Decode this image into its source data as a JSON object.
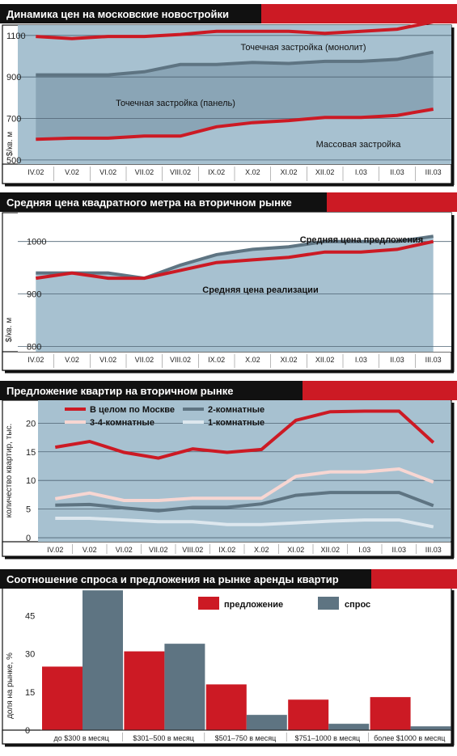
{
  "colors": {
    "header_bg": "#111111",
    "header_accent": "#cc1a24",
    "plot_bg": "#a7c1d0",
    "blue_band": "#8aa5b6",
    "grid": "#4e6373",
    "red": "#cc1a24",
    "slate": "#5e7482",
    "pink": "#f7d6d2",
    "light": "#dde7ee"
  },
  "chart_data": [
    {
      "type": "area",
      "title": "Динамика цен на московские новостройки",
      "xlabel": "",
      "ylabel": "$/кв. м",
      "categories": [
        "IV.02",
        "V.02",
        "VI.02",
        "VII.02",
        "VIII.02",
        "IX.02",
        "X.02",
        "XI.02",
        "XII.02",
        "I.03",
        "II.03",
        "III.03"
      ],
      "yticks": [
        500,
        700,
        900,
        1100
      ],
      "ylim": [
        480,
        1150
      ],
      "series": [
        {
          "name": "Точечная застройка (монолит)",
          "values": [
            1095,
            1085,
            1095,
            1095,
            1105,
            1120,
            1120,
            1120,
            1110,
            1120,
            1130,
            1165
          ]
        },
        {
          "name": "Точечная застройка (панель)",
          "values": [
            910,
            910,
            910,
            925,
            960,
            960,
            970,
            965,
            975,
            975,
            985,
            1020
          ]
        },
        {
          "name": "Массовая застройка",
          "values": [
            600,
            605,
            605,
            615,
            615,
            660,
            680,
            690,
            705,
            705,
            715,
            745
          ]
        }
      ]
    },
    {
      "type": "area",
      "title": "Средняя цена квадратного метра на вторичном рынке",
      "xlabel": "",
      "ylabel": "$/кв. м",
      "categories": [
        "IV.02",
        "V.02",
        "VI.02",
        "VII.02",
        "VIII.02",
        "IX.02",
        "X.02",
        "XI.02",
        "XII.02",
        "I.03",
        "II.03",
        "III.03"
      ],
      "yticks": [
        800,
        900,
        1000
      ],
      "ylim": [
        790,
        1055
      ],
      "series": [
        {
          "name": "Средняя цена предложения",
          "values": [
            940,
            940,
            940,
            930,
            955,
            975,
            985,
            990,
            1000,
            1000,
            1000,
            1010
          ]
        },
        {
          "name": "Средняя цена реализации",
          "values": [
            930,
            940,
            930,
            930,
            945,
            960,
            965,
            970,
            980,
            980,
            985,
            1000
          ]
        }
      ]
    },
    {
      "type": "line",
      "title": "Предложение квартир на вторичном рынке",
      "xlabel": "",
      "ylabel": "количество квартир, тыс.",
      "categories": [
        "IV.02",
        "V.02",
        "VI.02",
        "VII.02",
        "VIII.02",
        "IX.02",
        "X.02",
        "XI.02",
        "XII.02",
        "I.03",
        "II.03",
        "III.03"
      ],
      "yticks": [
        0,
        5,
        10,
        15,
        20
      ],
      "ylim": [
        -0.7,
        24
      ],
      "legend": "top-left",
      "series": [
        {
          "name": "В целом по Москве",
          "values": [
            15.8,
            16.8,
            14.9,
            13.9,
            15.5,
            14.9,
            15.4,
            20.5,
            22,
            22.1,
            22.1,
            16.6
          ]
        },
        {
          "name": "2-комнатные",
          "values": [
            5.7,
            5.8,
            5.2,
            4.7,
            5.3,
            5.3,
            5.9,
            7.4,
            7.9,
            7.9,
            7.9,
            5.6
          ]
        },
        {
          "name": "3-4-комнатные",
          "values": [
            6.8,
            7.8,
            6.5,
            6.5,
            6.9,
            6.9,
            6.9,
            10.7,
            11.5,
            11.5,
            12,
            9.7
          ]
        },
        {
          "name": "1-комнатные",
          "values": [
            3.4,
            3.4,
            3.1,
            2.8,
            2.8,
            2.3,
            2.3,
            2.6,
            2.9,
            3.1,
            3.1,
            1.9
          ]
        }
      ]
    },
    {
      "type": "bar",
      "title": "Соотношение спроса и предложения на рынке аренды квартир",
      "xlabel": "",
      "ylabel": "доля на рынке, %",
      "categories": [
        "до $300 в месяц",
        "$301–500 в месяц",
        "$501–750 в месяц",
        "$751–1000 в месяц",
        "более $1000 в месяц"
      ],
      "yticks": [
        0,
        15,
        30,
        45
      ],
      "ylim": [
        0,
        56
      ],
      "legend": "top-right",
      "series": [
        {
          "name": "предложение",
          "values": [
            25,
            31,
            18,
            12,
            13
          ]
        },
        {
          "name": "спрос",
          "values": [
            55,
            34,
            6,
            2.5,
            1.5
          ]
        }
      ]
    }
  ]
}
